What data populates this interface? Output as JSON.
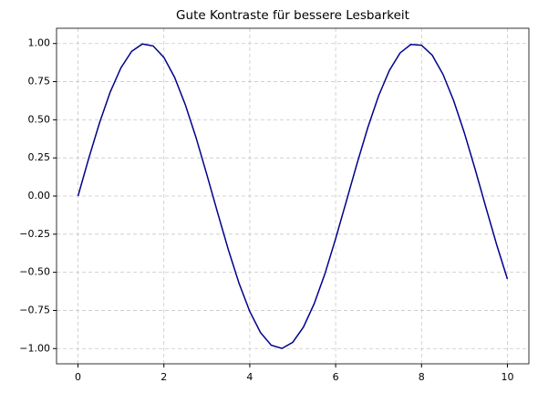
{
  "chart_data": {
    "type": "line",
    "title": "Gute Kontraste für bessere Lesbarkeit",
    "x": [
      0,
      0.25,
      0.5,
      0.75,
      1,
      1.25,
      1.5,
      1.75,
      2,
      2.25,
      2.5,
      2.75,
      3,
      3.25,
      3.5,
      3.75,
      4,
      4.25,
      4.5,
      4.75,
      5,
      5.25,
      5.5,
      5.75,
      6,
      6.25,
      6.5,
      6.75,
      7,
      7.25,
      7.5,
      7.75,
      8,
      8.25,
      8.5,
      8.75,
      9,
      9.25,
      9.5,
      9.75,
      10
    ],
    "series": [
      {
        "color": "#00008b",
        "values": [
          0,
          0.247,
          0.479,
          0.682,
          0.841,
          0.949,
          0.997,
          0.984,
          0.909,
          0.778,
          0.598,
          0.382,
          0.141,
          -0.108,
          -0.351,
          -0.572,
          -0.757,
          -0.895,
          -0.978,
          -0.999,
          -0.959,
          -0.859,
          -0.706,
          -0.51,
          -0.279,
          -0.033,
          0.215,
          0.45,
          0.657,
          0.823,
          0.938,
          0.994,
          0.989,
          0.923,
          0.798,
          0.624,
          0.412,
          0.174,
          -0.075,
          -0.319,
          -0.544
        ]
      }
    ],
    "xlim": [
      -0.5,
      10.5
    ],
    "ylim": [
      -1.1,
      1.1
    ],
    "xticks": [
      0,
      2,
      4,
      6,
      8,
      10
    ],
    "yticks": [
      {
        "value": -1,
        "label": "−1.00"
      },
      {
        "value": -0.75,
        "label": "−0.75"
      },
      {
        "value": -0.5,
        "label": "−0.50"
      },
      {
        "value": -0.25,
        "label": "−0.25"
      },
      {
        "value": 0,
        "label": "0.00"
      },
      {
        "value": 0.25,
        "label": "0.25"
      },
      {
        "value": 0.5,
        "label": "0.50"
      },
      {
        "value": 0.75,
        "label": "0.75"
      },
      {
        "value": 1,
        "label": "1.00"
      }
    ],
    "grid": true
  }
}
